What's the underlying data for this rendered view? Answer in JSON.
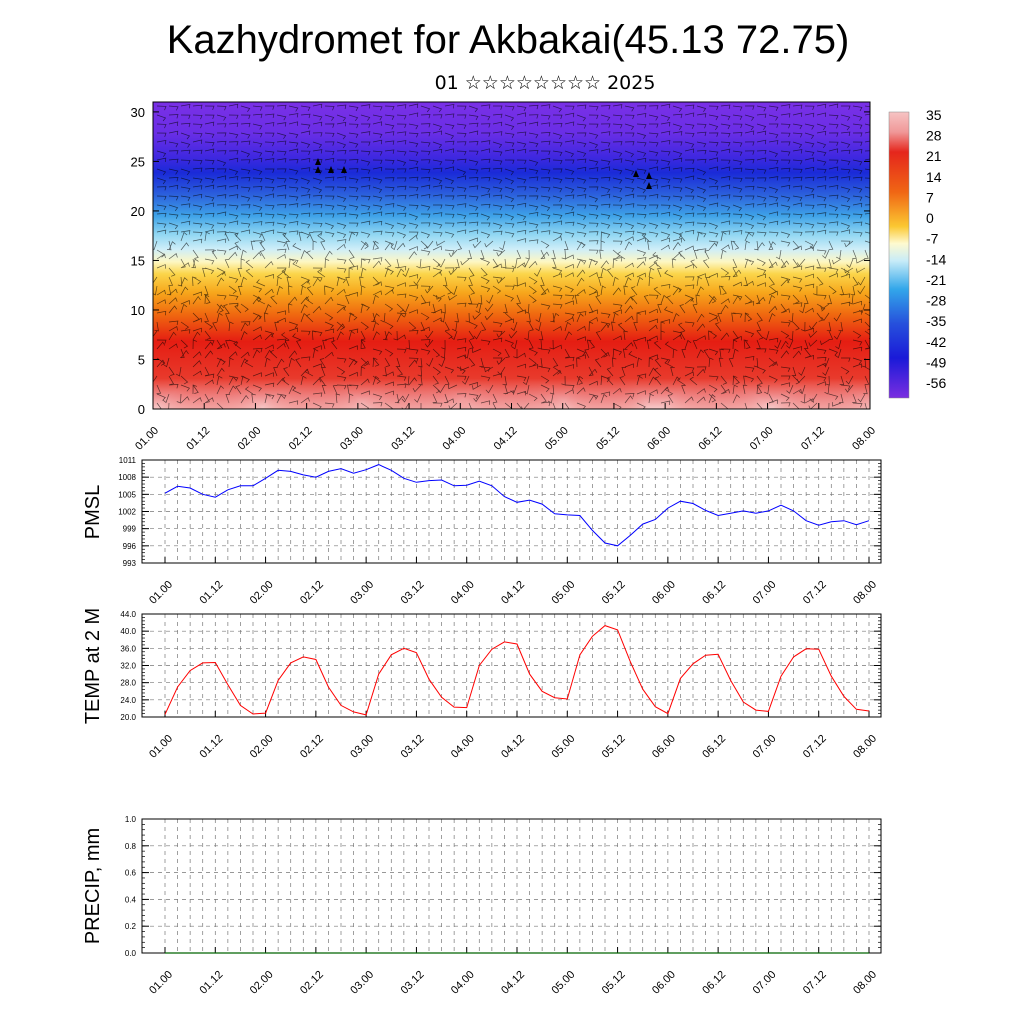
{
  "page": {
    "title": "Kazhydromet for Akbakai(45.13 72.75)",
    "subtitle": "01 ☆☆☆☆☆☆☆☆ 2025"
  },
  "colors": {
    "pmsl_line": "#0000ff",
    "temp_line": "#ff0000",
    "precip_line": "#006400",
    "colorbar_top": "#f4b6b6",
    "colorbar_bottom": "#7a2ee0"
  },
  "chart_data": [
    {
      "type": "heatmap",
      "title": "",
      "ylabel": "",
      "ylim": [
        0,
        31
      ],
      "yticks": [
        "0",
        "5",
        "10",
        "15",
        "20",
        "25",
        "30"
      ],
      "xticks": [
        "01.00",
        "01.12",
        "02.00",
        "02.12",
        "03.00",
        "03.12",
        "04.00",
        "04.12",
        "05.00",
        "05.12",
        "06.00",
        "06.12",
        "07.00",
        "07.12",
        "08.00"
      ],
      "colorbar_labels": [
        "35",
        "28",
        "21",
        "14",
        "7",
        "0",
        "-7",
        "-14",
        "-21",
        "-28",
        "-35",
        "-42",
        "-49",
        "-56"
      ],
      "overlay": "wind barbs"
    },
    {
      "type": "line",
      "ylabel": "PMSL",
      "ylim": [
        993,
        1011
      ],
      "yticks": [
        "993",
        "996",
        "999",
        "1002",
        "1005",
        "1008",
        "1011"
      ],
      "xticks": [
        "01.00",
        "01.12",
        "02.00",
        "02.12",
        "03.00",
        "03.12",
        "04.00",
        "04.12",
        "05.00",
        "05.12",
        "06.00",
        "06.12",
        "07.00",
        "07.12",
        "08.00"
      ],
      "series": [
        {
          "values": [
            1005.2,
            1006.4,
            1006.1,
            1005.0,
            1004.5,
            1005.8,
            1006.5,
            1006.5,
            1007.8,
            1009.2,
            1009.0,
            1008.4,
            1008.0,
            1009.0,
            1009.5,
            1008.7,
            1009.3,
            1010.2,
            1009.2,
            1007.8,
            1007.1,
            1007.4,
            1007.5,
            1006.5,
            1006.6,
            1007.3,
            1006.5,
            1004.6,
            1003.6,
            1004.0,
            1003.3,
            1001.6,
            1001.4,
            1001.3,
            998.7,
            996.5,
            996.0,
            997.8,
            999.8,
            1000.6,
            1002.6,
            1003.8,
            1003.4,
            1002.2,
            1001.3,
            1001.7,
            1002.1,
            1001.7,
            1002.1,
            1003.1,
            1002.1,
            1000.4,
            999.6,
            1000.2,
            1000.4,
            999.7,
            1000.4
          ]
        }
      ]
    },
    {
      "type": "line",
      "ylabel": "TEMP at 2 M",
      "ylim": [
        20,
        44
      ],
      "yticks": [
        "20.0",
        "24.0",
        "28.0",
        "32.0",
        "36.0",
        "40.0",
        "44.0"
      ],
      "xticks": [
        "01.00",
        "01.12",
        "02.00",
        "02.12",
        "03.00",
        "03.12",
        "04.00",
        "04.12",
        "05.00",
        "05.12",
        "06.00",
        "06.12",
        "07.00",
        "07.12",
        "08.00"
      ],
      "series": [
        {
          "values": [
            20.6,
            27.0,
            30.8,
            32.6,
            32.7,
            27.5,
            22.7,
            20.7,
            20.9,
            28.5,
            32.6,
            34.0,
            33.4,
            27.0,
            22.7,
            21.2,
            20.5,
            30.0,
            34.5,
            36.0,
            35.0,
            28.8,
            24.6,
            22.3,
            22.2,
            32.0,
            35.8,
            37.5,
            37.0,
            30.0,
            26.0,
            24.5,
            24.2,
            34.5,
            38.8,
            41.3,
            40.3,
            33.0,
            26.5,
            22.4,
            20.8,
            29.0,
            32.4,
            34.4,
            34.6,
            28.5,
            23.5,
            21.6,
            21.3,
            29.5,
            34.0,
            35.9,
            35.8,
            29.5,
            24.8,
            21.8,
            21.4
          ]
        }
      ]
    },
    {
      "type": "line",
      "ylabel": "PRECIP, mm",
      "ylim": [
        0,
        1
      ],
      "yticks": [
        "0.0",
        "0.2",
        "0.4",
        "0.6",
        "0.8",
        "1.0"
      ],
      "xticks": [
        "01.00",
        "01.12",
        "02.00",
        "02.12",
        "03.00",
        "03.12",
        "04.00",
        "04.12",
        "05.00",
        "05.12",
        "06.00",
        "06.12",
        "07.00",
        "07.12",
        "08.00"
      ],
      "series": [
        {
          "values": [
            0,
            0,
            0,
            0,
            0,
            0,
            0,
            0,
            0,
            0,
            0,
            0,
            0,
            0,
            0,
            0,
            0,
            0,
            0,
            0,
            0,
            0,
            0,
            0,
            0,
            0,
            0,
            0,
            0,
            0,
            0,
            0,
            0,
            0,
            0,
            0,
            0,
            0,
            0,
            0,
            0,
            0,
            0,
            0,
            0,
            0,
            0,
            0,
            0,
            0,
            0,
            0,
            0,
            0,
            0,
            0,
            0
          ]
        }
      ]
    }
  ]
}
